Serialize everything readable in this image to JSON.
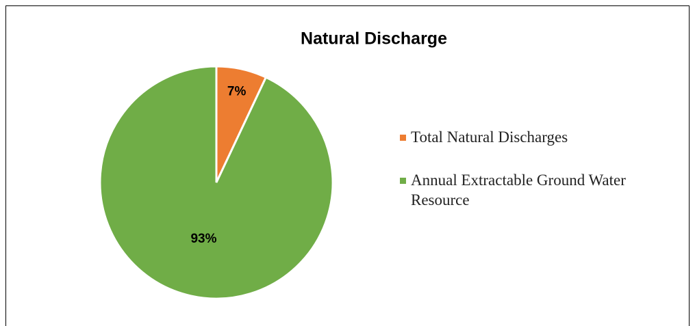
{
  "chart_data": {
    "type": "pie",
    "title": "Natural Discharge",
    "categories": [
      "Total Natural Discharges",
      "Annual Extractable Ground Water Resource"
    ],
    "values": [
      7,
      93
    ],
    "value_labels": [
      "7%",
      "93%"
    ],
    "colors": [
      "#ed7d31",
      "#70ad47"
    ],
    "legend": "right"
  }
}
